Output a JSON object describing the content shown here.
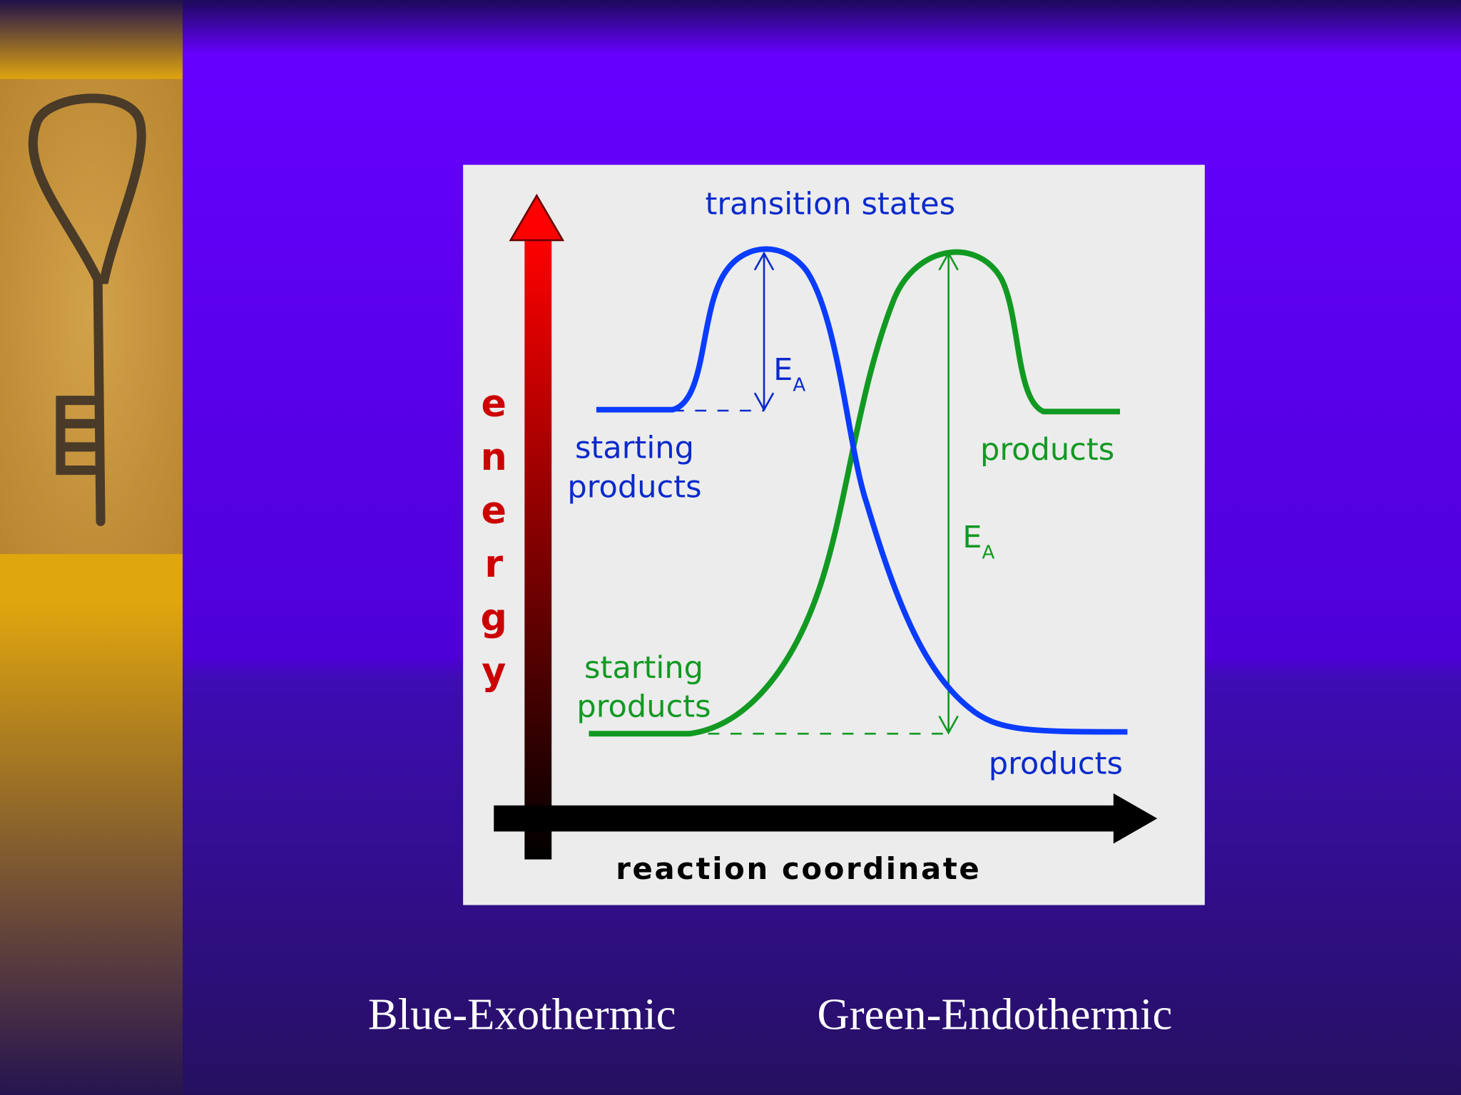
{
  "diagram": {
    "top_label": "transition states",
    "y_axis_label": "energy",
    "x_axis_label": "reaction coordinate",
    "blue": {
      "start_label": "starting products",
      "end_label": "products",
      "ea": {
        "main": "E",
        "sub": "A"
      }
    },
    "green": {
      "start_label": "starting products",
      "end_label": "products",
      "ea": {
        "main": "E",
        "sub": "A"
      }
    }
  },
  "captions": [
    "Blue-Exothermic",
    "Green-Endothermic"
  ]
}
